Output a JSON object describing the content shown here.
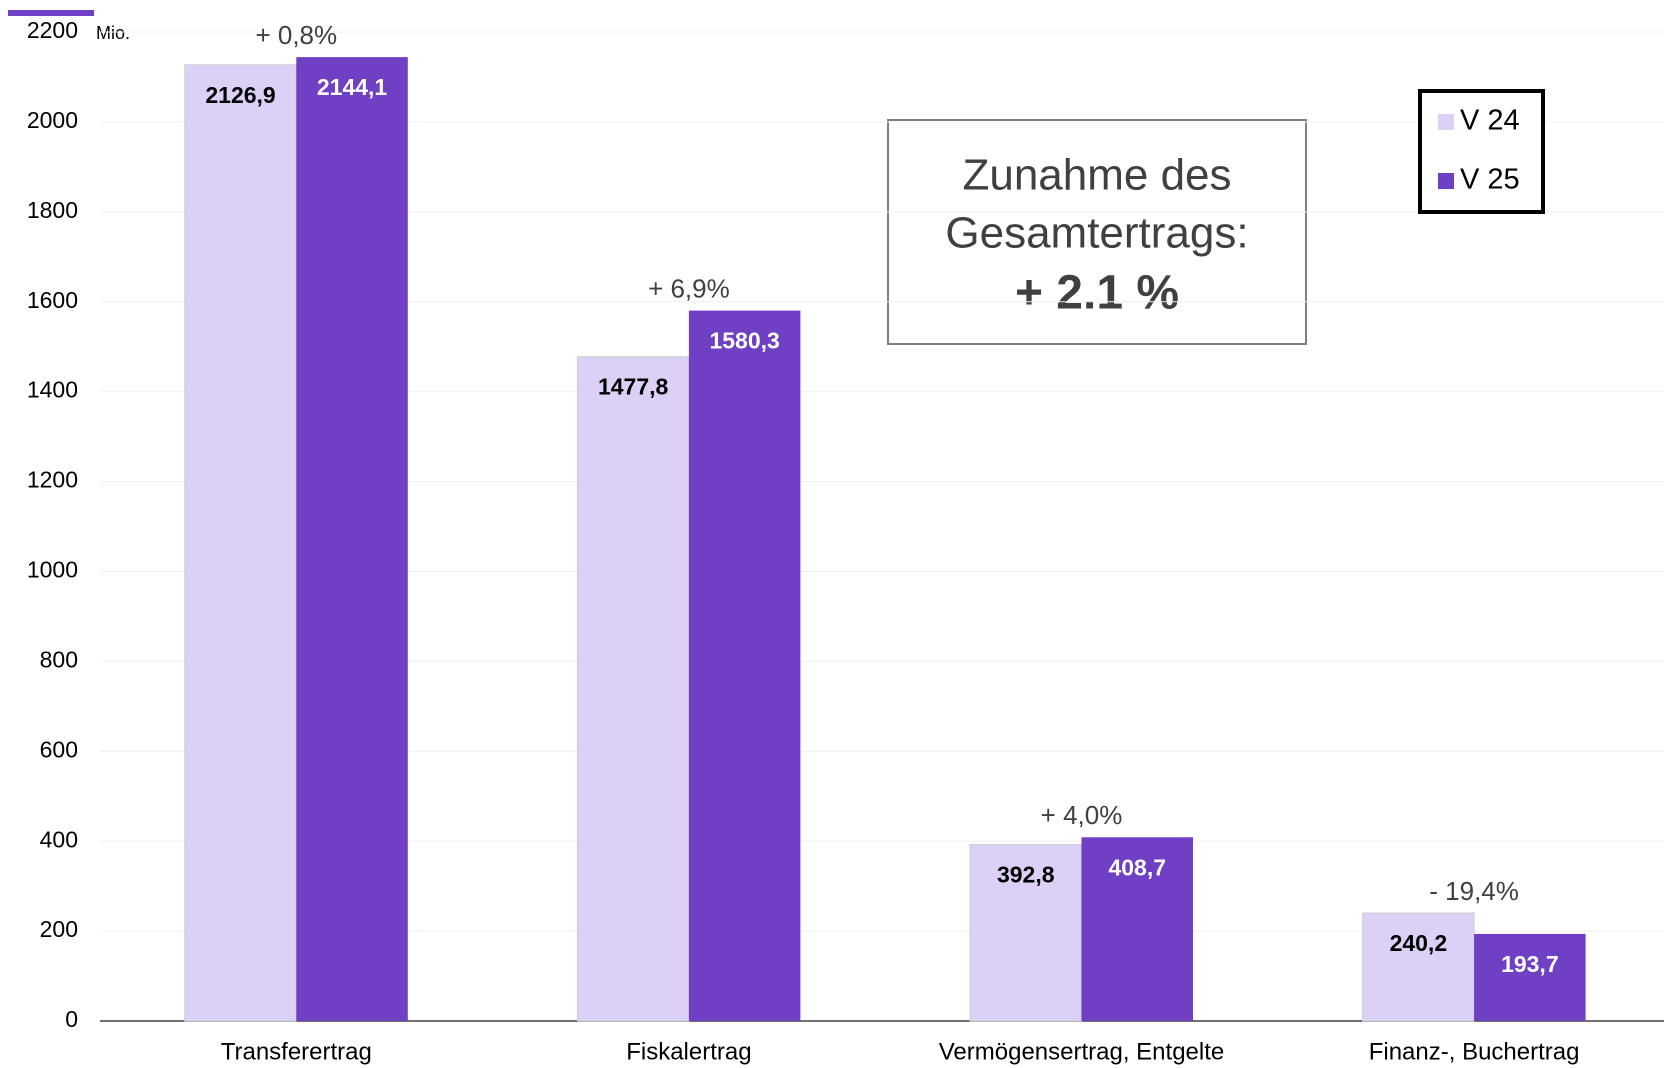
{
  "chart_data": {
    "type": "bar",
    "y_unit": "Mio.",
    "categories": [
      "Transferertrag",
      "Fiskalertrag",
      "Vermögensertrag, Entgelte",
      "Finanz-, Buchertrag"
    ],
    "series": [
      {
        "name": "V 24",
        "color": "#ddd0f7",
        "values": [
          2126.9,
          1477.8,
          392.8,
          240.2
        ],
        "value_labels": [
          "2126,9",
          "1477,8",
          "392,8",
          "240,2"
        ]
      },
      {
        "name": "V 25",
        "color": "#6f3fc4",
        "values": [
          2144.1,
          1580.3,
          408.7,
          193.7
        ],
        "value_labels": [
          "2144,1",
          "1580,3",
          "408,7",
          "193,7"
        ]
      }
    ],
    "change_labels": [
      "+ 0,8%",
      "+ 6,9%",
      "+ 4,0%",
      "- 19,4%"
    ],
    "callout": [
      "Zunahme des",
      "Gesamtertrags:",
      "+ 2.1 %"
    ],
    "ylim": [
      0,
      2200
    ],
    "yticks": [
      0,
      200,
      400,
      600,
      800,
      1000,
      1200,
      1400,
      1600,
      1800,
      2000,
      2200
    ],
    "grid": true,
    "legend": "top-right"
  }
}
